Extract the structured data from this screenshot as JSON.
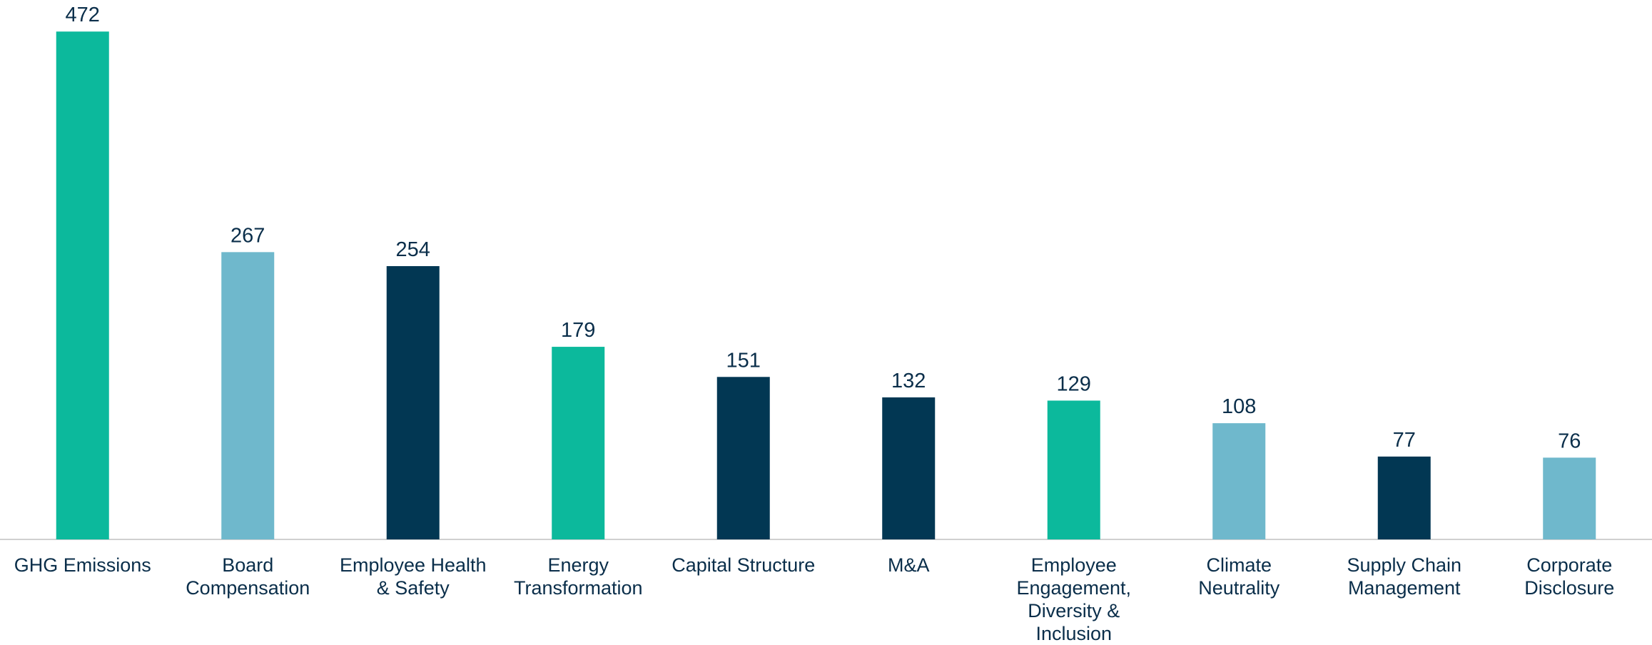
{
  "chart_data": {
    "type": "bar",
    "categories": [
      "GHG Emissions",
      "Board\nCompensation",
      "Employee Health\n& Safety",
      "Energy\nTransformation",
      "Capital Structure",
      "M&A",
      "Employee\nEngagement,\nDiversity &\nInclusion",
      "Climate\nNeutrality",
      "Supply Chain\nManagement",
      "Corporate\nDisclosure"
    ],
    "values": [
      472,
      267,
      254,
      179,
      151,
      132,
      129,
      108,
      77,
      76
    ],
    "colors": [
      "#0cb99c",
      "#6fb8cc",
      "#023753",
      "#0cb99c",
      "#023753",
      "#023753",
      "#0cb99c",
      "#6fb8cc",
      "#023753",
      "#6fb8cc"
    ],
    "ylim": [
      0,
      500
    ]
  }
}
